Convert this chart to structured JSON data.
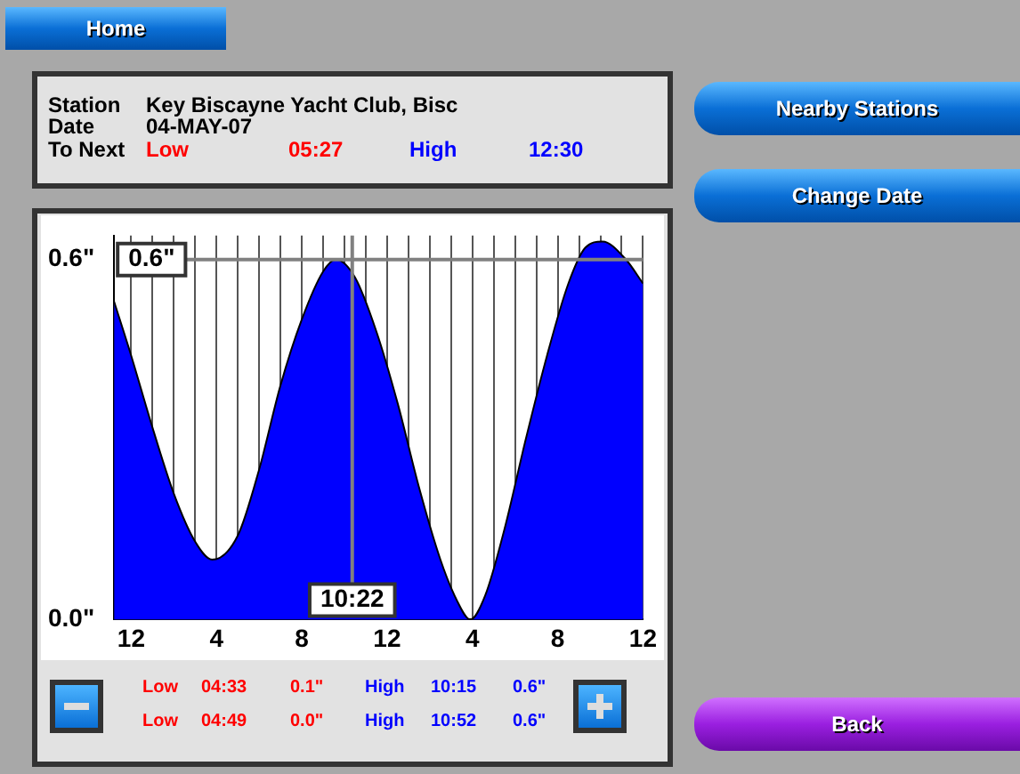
{
  "chart_data": {
    "type": "area",
    "x": [
      "--05-03T23:12",
      "--05-04T00:00",
      "--05-04T01:00",
      "--05-04T02:00",
      "--05-04T03:00",
      "--05-04T03:48",
      "--05-04T05:00",
      "--05-04T06:00",
      "--05-04T07:00",
      "--05-04T08:00",
      "--05-04T09:00",
      "--05-04T09:36",
      "--05-04T10:30",
      "--05-04T11:30",
      "--05-04T12:30",
      "--05-04T13:30",
      "--05-04T14:30",
      "--05-04T15:18",
      "--05-04T15:54",
      "--05-04T16:36",
      "--05-04T17:30",
      "--05-04T18:30",
      "--05-04T19:30",
      "--05-04T20:30",
      "--05-04T21:18",
      "--05-04T22:06",
      "--05-04T23:12",
      "--05-05T00:00"
    ],
    "values": [
      0.53,
      0.44,
      0.32,
      0.21,
      0.13,
      0.1,
      0.14,
      0.25,
      0.39,
      0.5,
      0.58,
      0.6,
      0.57,
      0.48,
      0.36,
      0.22,
      0.1,
      0.03,
      0,
      0.04,
      0.15,
      0.3,
      0.44,
      0.56,
      0.62,
      0.63,
      0.6,
      0.56
    ],
    "color": "#0000ff",
    "xlim": [
      "--05-03T23:12",
      "--05-05T00:00"
    ],
    "xticks": [
      {
        "value": "--05-04T00:00",
        "label": "12"
      },
      {
        "value": "--05-04T01:00",
        "label": null
      },
      {
        "value": "--05-04T02:00",
        "label": null
      },
      {
        "value": "--05-04T03:00",
        "label": null
      },
      {
        "value": "--05-04T04:00",
        "label": "4"
      },
      {
        "value": "--05-04T05:00",
        "label": null
      },
      {
        "value": "--05-04T06:00",
        "label": null
      },
      {
        "value": "--05-04T07:00",
        "label": null
      },
      {
        "value": "--05-04T08:00",
        "label": "8"
      },
      {
        "value": "--05-04T09:00",
        "label": null
      },
      {
        "value": "--05-04T10:00",
        "label": null
      },
      {
        "value": "--05-04T11:00",
        "label": null
      },
      {
        "value": "--05-04T12:00",
        "label": "12"
      },
      {
        "value": "--05-04T13:00",
        "label": null
      },
      {
        "value": "--05-04T14:00",
        "label": null
      },
      {
        "value": "--05-04T15:00",
        "label": null
      },
      {
        "value": "--05-04T16:00",
        "label": "4"
      },
      {
        "value": "--05-04T17:00",
        "label": null
      },
      {
        "value": "--05-04T18:00",
        "label": null
      },
      {
        "value": "--05-04T19:00",
        "label": null
      },
      {
        "value": "--05-04T20:00",
        "label": "8"
      },
      {
        "value": "--05-04T21:00",
        "label": null
      },
      {
        "value": "--05-04T22:00",
        "label": null
      },
      {
        "value": "--05-04T23:00",
        "label": null
      },
      {
        "value": "--05-05T00:00",
        "label": "12"
      }
    ],
    "ylim": [
      0,
      0.64
    ],
    "yticks": [
      {
        "value": 0,
        "label": "0.0\""
      },
      {
        "value": 0.6,
        "label": "0.6\""
      }
    ],
    "grid": "x",
    "ref_lines": [
      {
        "axis": "y",
        "value": 0.6,
        "label": "0.6\"",
        "color": "#808080"
      },
      {
        "axis": "x",
        "value": "--05-04T10:22",
        "label": "10:22",
        "color": "#808080"
      }
    ],
    "annotations": [
      "Home",
      "Station",
      "Key Biscayne Yacht Club, Bisc",
      "Date",
      "04-MAY-07",
      "To Next",
      "Low",
      "05:27",
      "High",
      "12:30",
      "Nearby Stations",
      "Change Date",
      "Back",
      "Low",
      "04:33",
      "0.1\"",
      "High",
      "10:15",
      "0.6\"",
      "Low",
      "04:49",
      "0.0\"",
      "High",
      "10:52",
      "0.6\""
    ]
  }
}
